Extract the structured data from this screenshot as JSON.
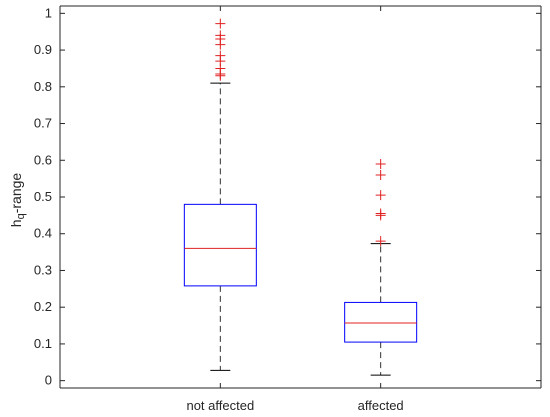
{
  "chart_data": {
    "type": "box",
    "title": "",
    "xlabel": "",
    "ylabel": {
      "main": "h",
      "sub": "q",
      "rest": "-range"
    },
    "ylim": [
      -0.02,
      1.02
    ],
    "yticks": [
      {
        "value": 0,
        "label": "0"
      },
      {
        "value": 0.1,
        "label": "0.1"
      },
      {
        "value": 0.2,
        "label": "0.2"
      },
      {
        "value": 0.3,
        "label": "0.3"
      },
      {
        "value": 0.4,
        "label": "0.4"
      },
      {
        "value": 0.5,
        "label": "0.5"
      },
      {
        "value": 0.6,
        "label": "0.6"
      },
      {
        "value": 0.7,
        "label": "0.7"
      },
      {
        "value": 0.8,
        "label": "0.8"
      },
      {
        "value": 0.9,
        "label": "0.9"
      },
      {
        "value": 1,
        "label": "1"
      }
    ],
    "grid": false,
    "categories": [
      "not affected",
      "affected"
    ],
    "boxes": [
      {
        "category": "not affected",
        "whisker_low": 0.028,
        "q1": 0.258,
        "median": 0.36,
        "q3": 0.48,
        "whisker_high": 0.81,
        "outliers": [
          0.83,
          0.835,
          0.85,
          0.87,
          0.885,
          0.915,
          0.93,
          0.94,
          0.972
        ]
      },
      {
        "category": "affected",
        "whisker_low": 0.015,
        "q1": 0.105,
        "median": 0.157,
        "q3": 0.213,
        "whisker_high": 0.373,
        "outliers": [
          0.38,
          0.45,
          0.455,
          0.505,
          0.56,
          0.59
        ]
      }
    ],
    "colors": {
      "box": "#0000ff",
      "median": "#e02020",
      "outlier": "#e02020",
      "whisker": "#333333",
      "axis": "#262626"
    }
  }
}
